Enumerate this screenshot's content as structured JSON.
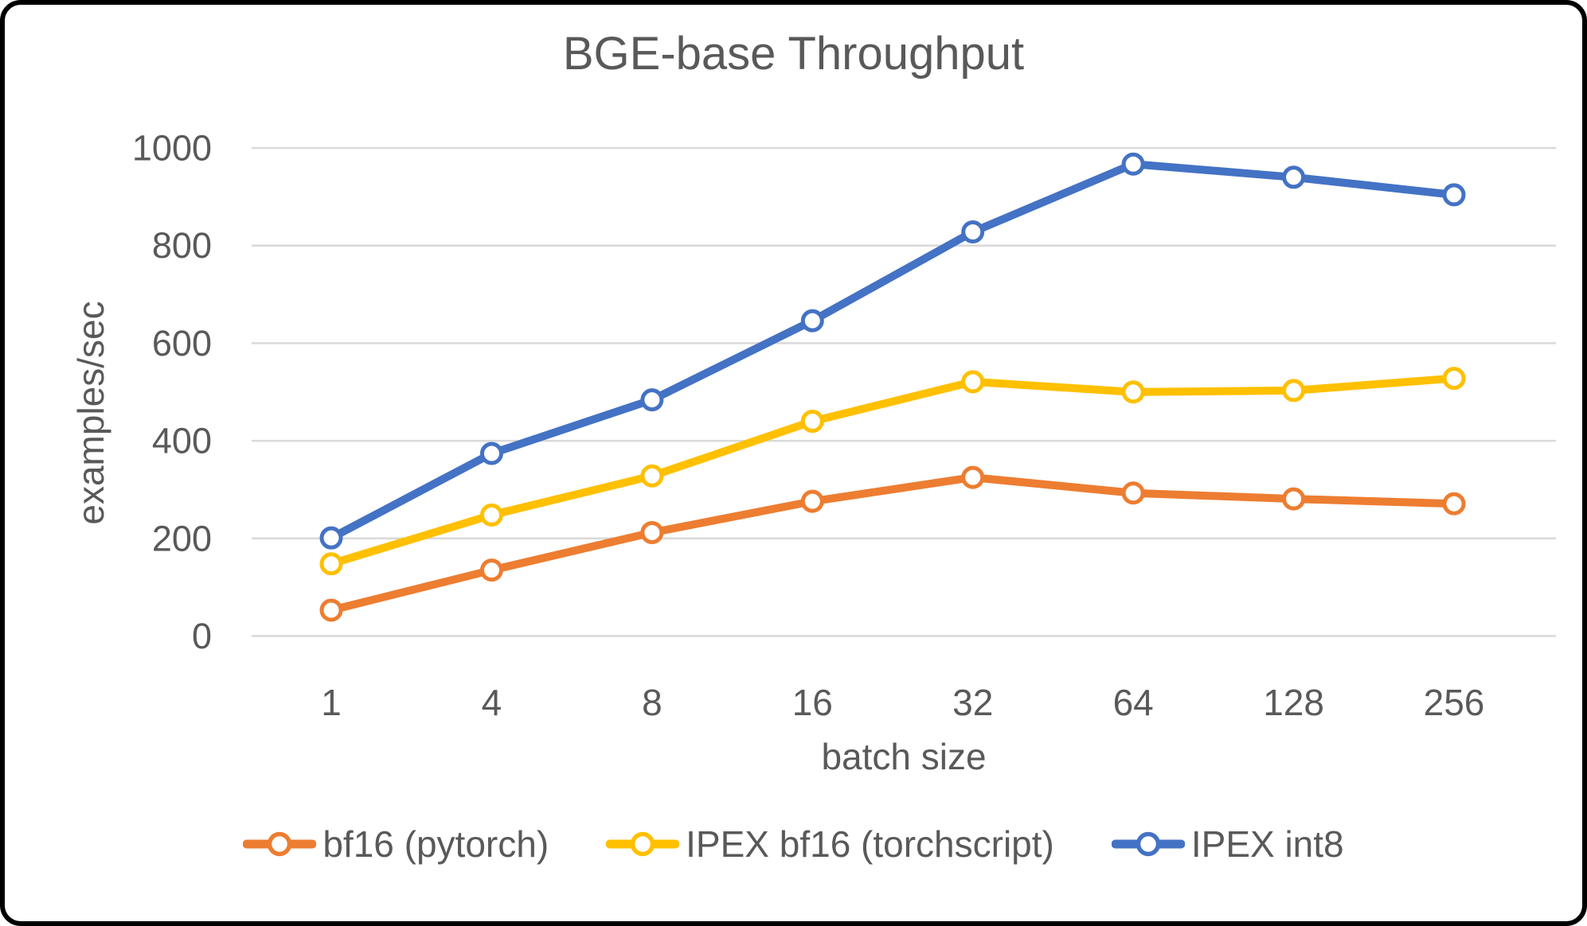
{
  "chart_data": {
    "type": "line",
    "title": "BGE-base Throughput",
    "xlabel": "batch size",
    "ylabel": "examples/sec",
    "categories": [
      "1",
      "4",
      "8",
      "16",
      "32",
      "64",
      "128",
      "256"
    ],
    "yticks": [
      0,
      200,
      400,
      600,
      800,
      1000
    ],
    "ylim": [
      0,
      1000
    ],
    "grid": "horizontal",
    "legend_position": "bottom",
    "marker": "open-circle",
    "series": [
      {
        "name": "bf16 (pytorch)",
        "color": "#ED7D31",
        "values": [
          53,
          135,
          212,
          276,
          325,
          293,
          281,
          271
        ]
      },
      {
        "name": "IPEX bf16 (torchscript)",
        "color": "#FFC000",
        "values": [
          148,
          248,
          328,
          440,
          521,
          500,
          503,
          528
        ]
      },
      {
        "name": "IPEX int8",
        "color": "#4472C4",
        "values": [
          201,
          374,
          484,
          646,
          828,
          967,
          940,
          904
        ]
      }
    ],
    "colors": {
      "text": "#595959",
      "gridline": "#D9D9D9",
      "background": "#FFFFFF",
      "frame_border": "#000000"
    }
  }
}
